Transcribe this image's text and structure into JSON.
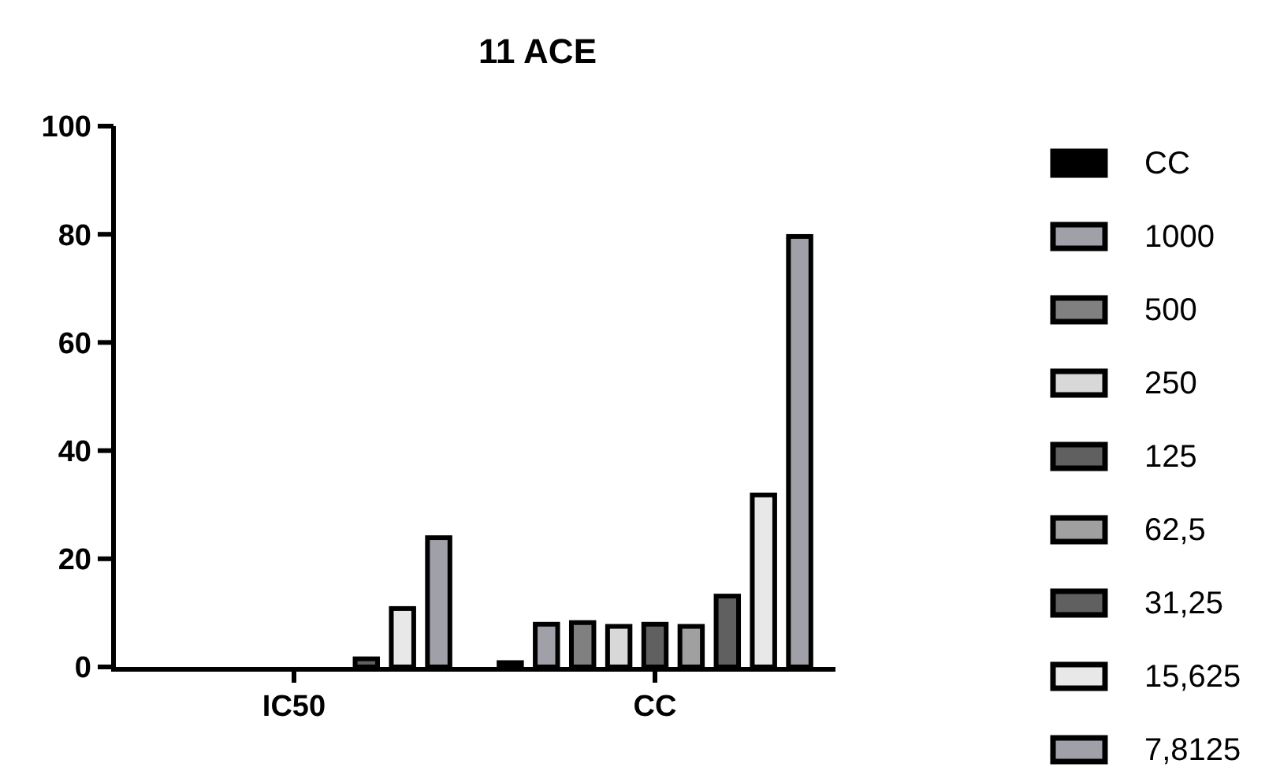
{
  "chart_data": {
    "type": "bar",
    "title": "11 ACE",
    "categories": [
      "IC50",
      "CC"
    ],
    "series": [
      {
        "name": "CC",
        "color": "#000000",
        "values": [
          0,
          0.8
        ]
      },
      {
        "name": "1000",
        "color": "#a0a0a8",
        "values": [
          0,
          7.9
        ]
      },
      {
        "name": "500",
        "color": "#808080",
        "values": [
          0,
          8.2
        ]
      },
      {
        "name": "250",
        "color": "#d8d8d8",
        "values": [
          0,
          7.5
        ]
      },
      {
        "name": "125",
        "color": "#606060",
        "values": [
          0,
          7.9
        ]
      },
      {
        "name": "62,5",
        "color": "#a0a0a0",
        "values": [
          0,
          7.5
        ]
      },
      {
        "name": "31,25",
        "color": "#606060",
        "values": [
          1.5,
          13.1
        ]
      },
      {
        "name": "15,625",
        "color": "#e8e8e8",
        "values": [
          10.8,
          31.8
        ]
      },
      {
        "name": "7,8125",
        "color": "#a0a0a8",
        "values": [
          23.9,
          79.6
        ]
      }
    ],
    "ylim": [
      0,
      100
    ],
    "yticks": [
      0,
      20,
      40,
      60,
      80,
      100
    ],
    "legend": "right"
  }
}
